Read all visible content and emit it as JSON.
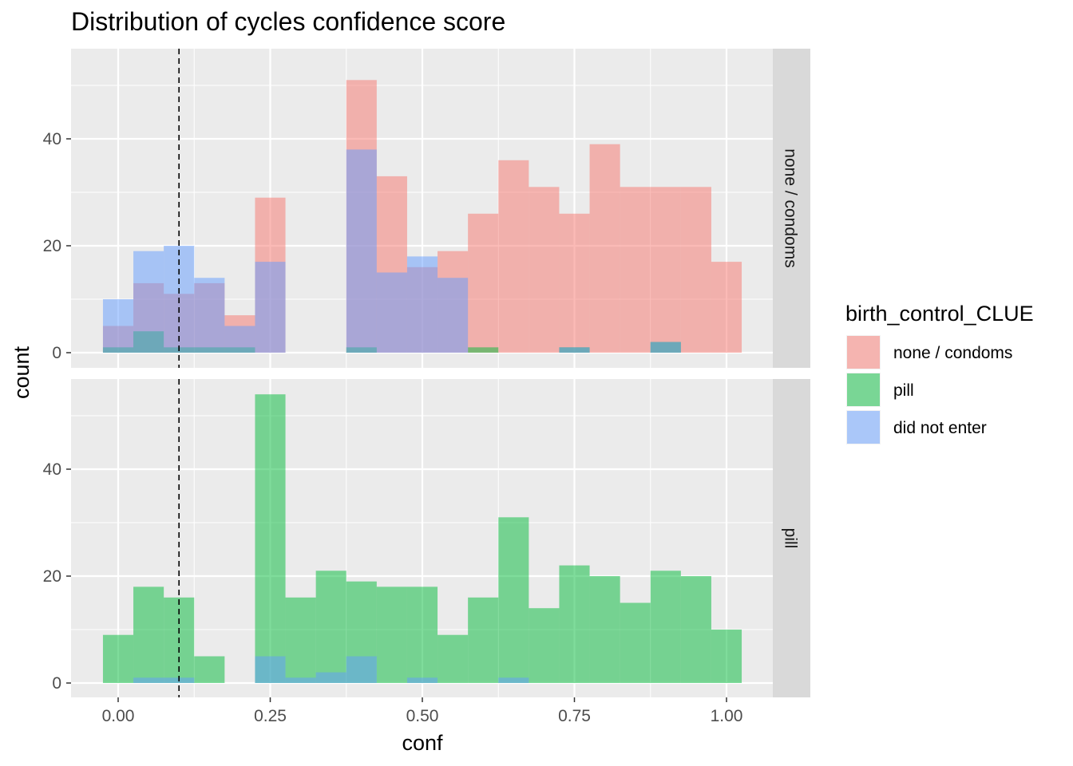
{
  "chart_data": {
    "type": "bar",
    "subtype": "faceted overlapping histogram",
    "title": "Distribution of cycles confidence score",
    "xlabel": "conf",
    "ylabel": "count",
    "x_ticks": [
      0.0,
      0.25,
      0.5,
      0.75,
      1.0
    ],
    "x_tick_labels": [
      "0.00",
      "0.25",
      "0.50",
      "0.75",
      "1.00"
    ],
    "y_ticks": [
      0,
      20,
      40
    ],
    "y_tick_labels": [
      "0",
      "20",
      "40"
    ],
    "xlim": [
      -0.04,
      1.08
    ],
    "ylim": [
      0,
      57
    ],
    "bin_width": 0.05,
    "bin_centers": [
      0.0,
      0.05,
      0.1,
      0.15,
      0.2,
      0.25,
      0.3,
      0.35,
      0.4,
      0.45,
      0.5,
      0.55,
      0.6,
      0.65,
      0.7,
      0.75,
      0.8,
      0.85,
      0.9,
      0.95,
      1.0
    ],
    "reference_line": {
      "x": 0.1,
      "style": "dashed"
    },
    "grid": true,
    "legend": {
      "title": "birth_control_CLUE",
      "position": "right",
      "entries": [
        {
          "label": "none / condoms",
          "color": "#F8766D"
        },
        {
          "label": "pill",
          "color": "#00BA38"
        },
        {
          "label": "did not enter",
          "color": "#619CFF"
        }
      ]
    },
    "facets": [
      {
        "label": "none / condoms",
        "series": [
          {
            "name": "none / condoms",
            "color": "#F8766D",
            "values": [
              5,
              13,
              11,
              13,
              7,
              29,
              0,
              0,
              51,
              33,
              16,
              19,
              26,
              36,
              31,
              26,
              39,
              31,
              31,
              31,
              17
            ]
          },
          {
            "name": "pill",
            "color": "#00BA38",
            "values": [
              1,
              4,
              1,
              1,
              1,
              0,
              0,
              0,
              1,
              0,
              0,
              0,
              1,
              0,
              0,
              1,
              0,
              0,
              2,
              0,
              0
            ]
          },
          {
            "name": "did not enter",
            "color": "#619CFF",
            "values": [
              10,
              19,
              20,
              14,
              5,
              17,
              0,
              0,
              38,
              15,
              18,
              14,
              0,
              0,
              0,
              1,
              0,
              0,
              2,
              0,
              0
            ]
          }
        ]
      },
      {
        "label": "pill",
        "series": [
          {
            "name": "none / condoms",
            "color": "#F8766D",
            "values": [
              0,
              0,
              0,
              0,
              0,
              0,
              0,
              0,
              0,
              0,
              0,
              0,
              0,
              0,
              0,
              0,
              0,
              0,
              0,
              0,
              0
            ]
          },
          {
            "name": "pill",
            "color": "#00BA38",
            "values": [
              9,
              18,
              16,
              5,
              0,
              54,
              16,
              21,
              19,
              18,
              18,
              9,
              16,
              31,
              14,
              22,
              20,
              15,
              21,
              20,
              10
            ]
          },
          {
            "name": "did not enter",
            "color": "#619CFF",
            "values": [
              0,
              1,
              1,
              0,
              0,
              5,
              1,
              2,
              5,
              0,
              1,
              0,
              0,
              1,
              0,
              0,
              0,
              0,
              0,
              0,
              0
            ]
          }
        ]
      }
    ]
  }
}
